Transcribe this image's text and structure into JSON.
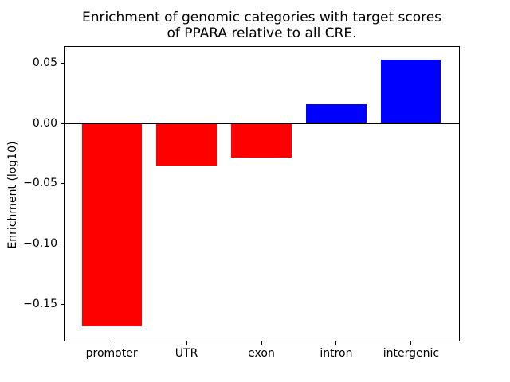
{
  "chart_data": {
    "type": "bar",
    "title": "Enrichment of genomic categories with target scores\nof PPARA relative to all CRE.",
    "xlabel": "",
    "ylabel": "Enrichment (log10)",
    "categories": [
      "promoter",
      "UTR",
      "exon",
      "intron",
      "intergenic"
    ],
    "values": [
      -0.168,
      -0.035,
      -0.028,
      0.016,
      0.053
    ],
    "bar_colors": [
      "#ff0000",
      "#ff0000",
      "#ff0000",
      "#0000ff",
      "#0000ff"
    ],
    "negative_color": "#ff0000",
    "positive_color": "#0000ff",
    "bar_width": 0.8,
    "ylim": [
      -0.18,
      0.064
    ],
    "xlim": [
      -0.64,
      4.64
    ],
    "yticks": [
      {
        "value": 0.05,
        "label": "0.05"
      },
      {
        "value": 0.0,
        "label": "0.00"
      },
      {
        "value": -0.05,
        "label": "−0.05"
      },
      {
        "value": -0.1,
        "label": "−0.10"
      },
      {
        "value": -0.15,
        "label": "−0.15"
      }
    ],
    "zero_line": true,
    "grid": false,
    "legend": "none",
    "background_color": "#ffffff"
  }
}
